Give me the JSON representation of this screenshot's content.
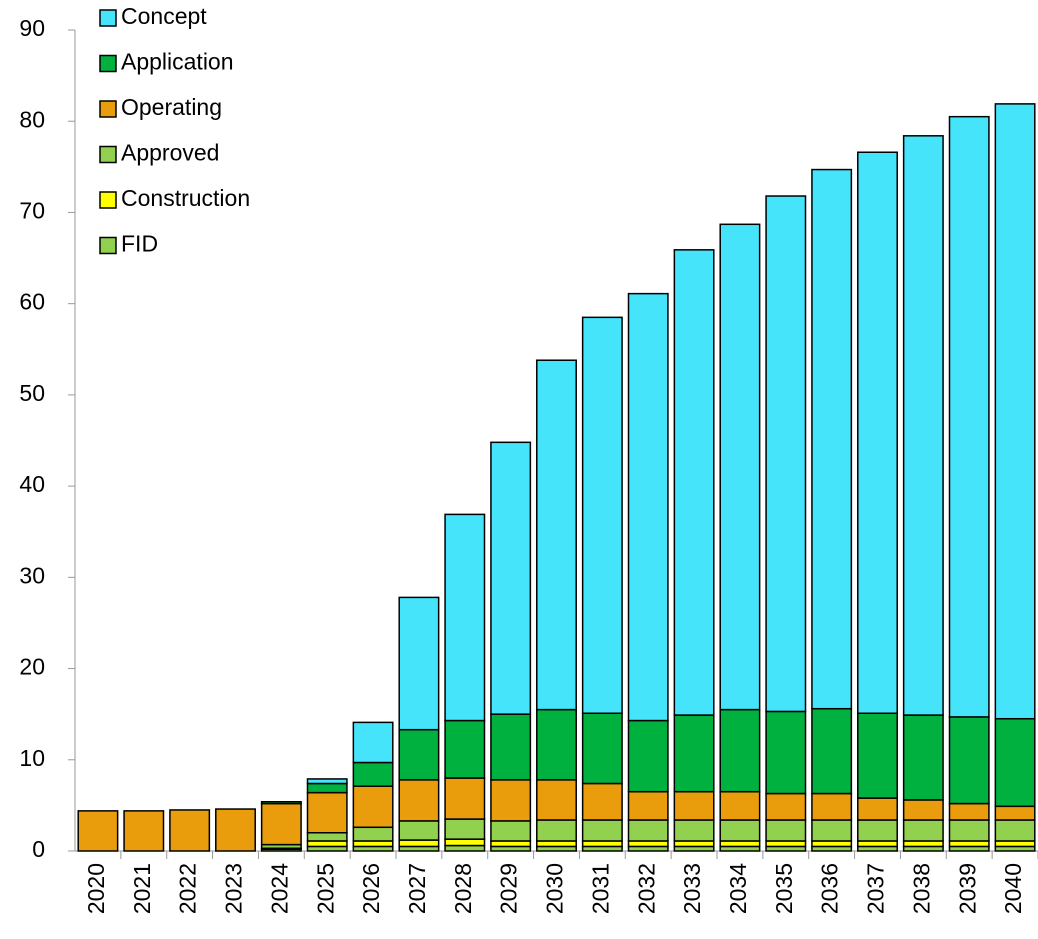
{
  "chart_data": {
    "type": "stacked-bar",
    "categories": [
      "2020",
      "2021",
      "2022",
      "2023",
      "2024",
      "2025",
      "2026",
      "2027",
      "2028",
      "2029",
      "2030",
      "2031",
      "2032",
      "2033",
      "2034",
      "2035",
      "2036",
      "2037",
      "2038",
      "2039",
      "2040"
    ],
    "series": [
      {
        "name": "FID",
        "color": "#92d050",
        "values": [
          0,
          0,
          0,
          0,
          0.2,
          0.5,
          0.5,
          0.5,
          0.6,
          0.5,
          0.5,
          0.5,
          0.5,
          0.5,
          0.5,
          0.5,
          0.5,
          0.5,
          0.5,
          0.5,
          0.5
        ]
      },
      {
        "name": "Construction",
        "color": "#ffff00",
        "values": [
          0,
          0,
          0,
          0,
          0.1,
          0.6,
          0.6,
          0.7,
          0.7,
          0.6,
          0.6,
          0.6,
          0.6,
          0.6,
          0.6,
          0.6,
          0.6,
          0.6,
          0.6,
          0.6,
          0.6
        ]
      },
      {
        "name": "Approved",
        "color": "#92d050",
        "values": [
          0,
          0,
          0,
          0,
          0.4,
          0.9,
          1.5,
          2.1,
          2.2,
          2.2,
          2.3,
          2.3,
          2.3,
          2.3,
          2.3,
          2.3,
          2.3,
          2.3,
          2.3,
          2.3,
          2.3
        ]
      },
      {
        "name": "Operating",
        "color": "#e99c0c",
        "values": [
          4.4,
          4.4,
          4.5,
          4.6,
          4.5,
          4.4,
          4.5,
          4.5,
          4.5,
          4.5,
          4.4,
          4.0,
          3.1,
          3.1,
          3.1,
          2.9,
          2.9,
          2.4,
          2.2,
          1.8,
          1.5
        ]
      },
      {
        "name": "Application",
        "color": "#00b140",
        "values": [
          0,
          0,
          0,
          0,
          0.2,
          1.0,
          2.6,
          5.5,
          6.3,
          7.2,
          7.7,
          7.7,
          7.8,
          8.4,
          9.0,
          9.0,
          9.3,
          9.3,
          9.3,
          9.5,
          9.6
        ]
      },
      {
        "name": "Concept",
        "color": "#45e4fb",
        "values": [
          0,
          0,
          0,
          0,
          0,
          0.5,
          4.4,
          14.5,
          22.6,
          29.8,
          38.3,
          43.4,
          46.8,
          51.0,
          53.2,
          56.5,
          59.1,
          61.5,
          63.5,
          65.8,
          67.4
        ]
      }
    ],
    "ylim": [
      0,
      90
    ],
    "yticks": [
      0,
      10,
      20,
      30,
      40,
      50,
      60,
      70,
      80,
      90
    ],
    "legend": "top-left"
  }
}
